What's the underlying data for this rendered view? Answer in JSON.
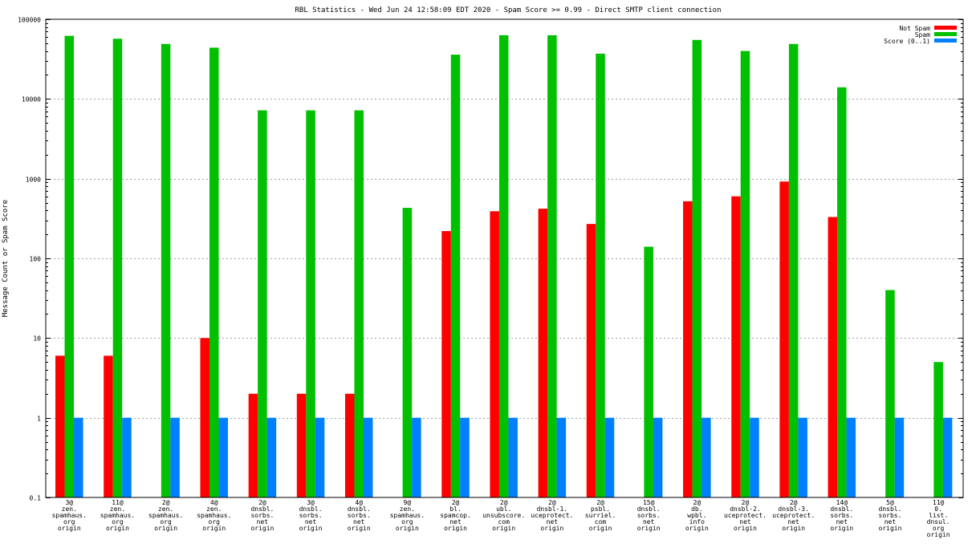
{
  "chart_data": {
    "type": "bar",
    "title": "RBL Statistics - Wed Jun 24 12:58:09 EDT 2020 - Spam Score >= 0.99 - Direct SMTP client connection",
    "ylabel": "Message Count or Spam Score",
    "xlabel": "",
    "yscale": "log",
    "ylim": [
      0.1,
      100000
    ],
    "yticks": [
      {
        "value": 0.1,
        "label": "0.1"
      },
      {
        "value": 1,
        "label": "1"
      },
      {
        "value": 10,
        "label": "10"
      },
      {
        "value": 100,
        "label": "100"
      },
      {
        "value": 1000,
        "label": "1000"
      },
      {
        "value": 10000,
        "label": "10000"
      },
      {
        "value": 100000,
        "label": "100000"
      }
    ],
    "grid": true,
    "legend_position": "top-right",
    "categories": [
      [
        "3@",
        "zen.",
        "spamhaus.",
        "org",
        "origin"
      ],
      [
        "11@",
        "zen.",
        "spamhaus.",
        "org",
        "origin"
      ],
      [
        "2@",
        "zen.",
        "spamhaus.",
        "org",
        "origin"
      ],
      [
        "4@",
        "zen.",
        "spamhaus.",
        "org",
        "origin"
      ],
      [
        "2@",
        "dnsbl.",
        "sorbs.",
        "net",
        "origin"
      ],
      [
        "3@",
        "dnsbl.",
        "sorbs.",
        "net",
        "origin"
      ],
      [
        "4@",
        "dnsbl.",
        "sorbs.",
        "net",
        "origin"
      ],
      [
        "9@",
        "zen.",
        "spamhaus.",
        "org",
        "origin"
      ],
      [
        "2@",
        "bl.",
        "spamcop.",
        "net",
        "origin"
      ],
      [
        "2@",
        "ubl.",
        "unsubscore.",
        "com",
        "origin"
      ],
      [
        "2@",
        "dnsbl-1.",
        "uceprotect.",
        "net",
        "origin"
      ],
      [
        "2@",
        "psbl.",
        "surriel.",
        "com",
        "origin"
      ],
      [
        "15@",
        "dnsbl.",
        "sorbs.",
        "net",
        "origin"
      ],
      [
        "2@",
        "db.",
        "wpbl.",
        "info",
        "origin"
      ],
      [
        "2@",
        "dnsbl-2.",
        "uceprotect.",
        "net",
        "origin"
      ],
      [
        "2@",
        "dnsbl-3.",
        "uceprotect.",
        "net",
        "origin"
      ],
      [
        "14@",
        "dnsbl.",
        "sorbs.",
        "net",
        "origin"
      ],
      [
        "5@",
        "dnsbl.",
        "sorbs.",
        "net",
        "origin"
      ],
      [
        "11@",
        "0.",
        "list.",
        "dnsul.",
        "org",
        "origin"
      ]
    ],
    "series": [
      {
        "name": "Not Spam",
        "color": "#ff0000",
        "values": [
          6,
          6,
          null,
          10,
          2,
          2,
          2,
          null,
          220,
          390,
          420,
          270,
          null,
          520,
          600,
          920,
          330,
          null,
          null
        ]
      },
      {
        "name": "Spam",
        "color": "#00c000",
        "values": [
          62000,
          57000,
          49000,
          44000,
          7200,
          7200,
          7200,
          430,
          36000,
          63000,
          63000,
          37000,
          140,
          55000,
          40000,
          49000,
          14000,
          40,
          5
        ]
      },
      {
        "name": "Score (0..1)",
        "color": "#0080ff",
        "values": [
          1,
          1,
          1,
          1,
          1,
          1,
          1,
          1,
          1,
          1,
          1,
          1,
          1,
          1,
          1,
          1,
          1,
          1,
          1
        ]
      }
    ]
  }
}
